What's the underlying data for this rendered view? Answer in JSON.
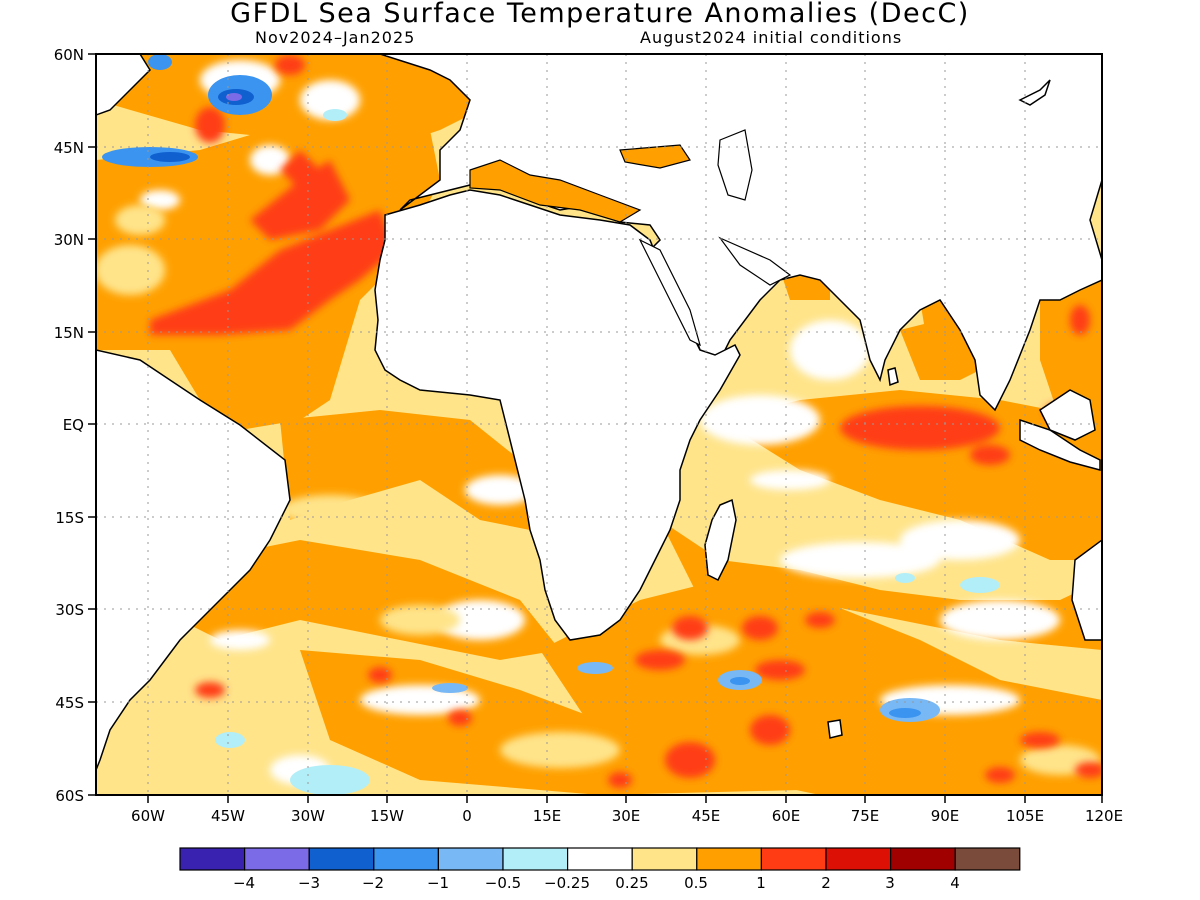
{
  "title": "GFDL Sea Surface Temperature Anomalies (DecC)",
  "subtitle_left": "Nov2024–Jan2025",
  "subtitle_right": "August2024 initial conditions",
  "lat_labels": [
    "60N",
    "45N",
    "30N",
    "15N",
    "EQ",
    "15S",
    "30S",
    "45S",
    "60S"
  ],
  "lon_labels": [
    "60W",
    "45W",
    "30W",
    "15W",
    "0",
    "15E",
    "30E",
    "45E",
    "60E",
    "75E",
    "90E",
    "105E",
    "120E"
  ],
  "colorbar": {
    "colors": [
      "#3a22b0",
      "#7b6be6",
      "#1060d0",
      "#3a94f0",
      "#78b8f5",
      "#b2eef8",
      "#ffffff",
      "#ffe48a",
      "#ffa000",
      "#ff3c14",
      "#dc1004",
      "#a00000",
      "#7a4a3a"
    ],
    "tick_labels": [
      "−4",
      "−3",
      "−2",
      "−1",
      "−0.5",
      "−0.25",
      "0.25",
      "0.5",
      "1",
      "2",
      "3",
      "4"
    ]
  }
}
